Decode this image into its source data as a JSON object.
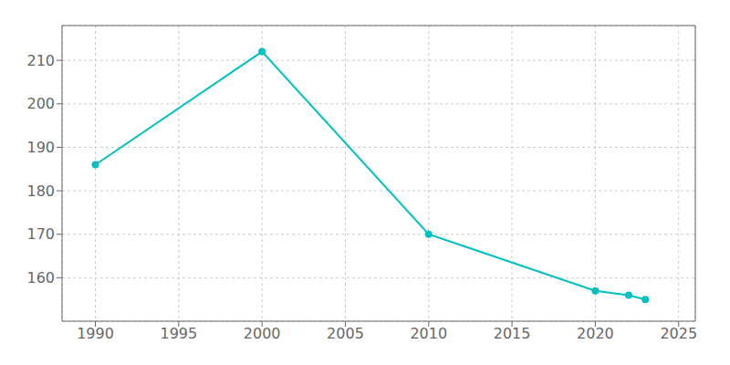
{
  "chart_data": {
    "type": "line",
    "x": [
      1990,
      2000,
      2010,
      2020,
      2022,
      2023
    ],
    "values": [
      186,
      212,
      170,
      157,
      156,
      155
    ],
    "color": "#00C0C0",
    "marker": "circle",
    "xlim": [
      1988,
      2026
    ],
    "ylim": [
      150,
      218
    ],
    "xticks": [
      1990,
      1995,
      2000,
      2005,
      2010,
      2015,
      2020,
      2025
    ],
    "yticks": [
      160,
      170,
      180,
      190,
      200,
      210
    ],
    "grid": true
  }
}
